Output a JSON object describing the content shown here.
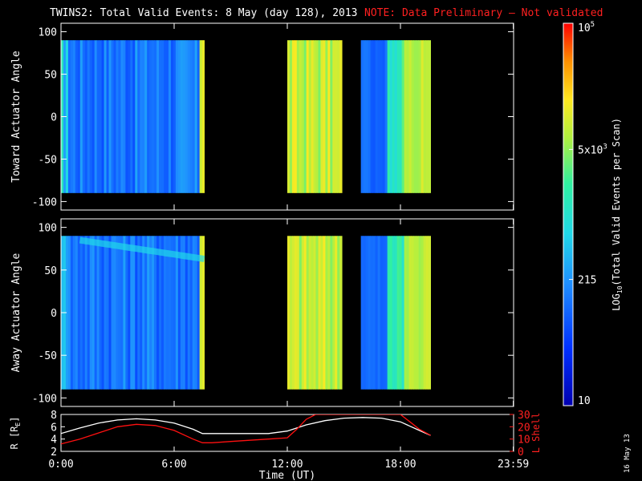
{
  "title": {
    "main": "TWINS2: Total Valid Events:  8 May (day 128), 2013",
    "note": "NOTE: Data Preliminary – Not validated",
    "note_color": "#ff2020"
  },
  "stamp": "16 May 13",
  "chart_data": [
    {
      "type": "heatmap",
      "panel": "toward",
      "ylabel": "Toward Actuator Angle",
      "ylim": [
        -110,
        110
      ],
      "yticks": [
        100,
        50,
        0,
        -50,
        -100
      ],
      "data_ylim": [
        -90,
        90
      ],
      "xlim_hours": [
        0,
        24
      ],
      "segments": [
        {
          "start_h": 0.0,
          "end_h": 7.6,
          "level": 0.28
        },
        {
          "start_h": 12.0,
          "end_h": 14.9,
          "level": 0.72
        },
        {
          "start_h": 15.9,
          "end_h": 19.6,
          "level": 0.55
        }
      ]
    },
    {
      "type": "heatmap",
      "panel": "away",
      "ylabel": "Away Actuator Angle",
      "ylim": [
        -110,
        110
      ],
      "yticks": [
        100,
        50,
        0,
        -50,
        -100
      ],
      "data_ylim": [
        -90,
        90
      ],
      "xlim_hours": [
        0,
        24
      ],
      "segments": [
        {
          "start_h": 0.0,
          "end_h": 7.6,
          "level": 0.28
        },
        {
          "start_h": 12.0,
          "end_h": 14.9,
          "level": 0.72
        },
        {
          "start_h": 15.9,
          "end_h": 19.6,
          "level": 0.55
        }
      ]
    },
    {
      "type": "line",
      "panel": "orbit",
      "xlabel": "Time (UT)",
      "xticks": [
        "0:00",
        "6:00",
        "12:00",
        "18:00",
        "23:59"
      ],
      "xtick_hours": [
        0,
        6,
        12,
        18,
        23.983
      ],
      "ylabel_left": "R [R",
      "ylabel_left_sub": "E",
      "ylabel_left_close": "]",
      "ylim_left": [
        2,
        8
      ],
      "yticks_left": [
        8,
        6,
        4,
        2
      ],
      "ylabel_right": "L Shell",
      "ylim_right": [
        0,
        30
      ],
      "yticks_right": [
        30,
        20,
        10,
        0
      ],
      "series": [
        {
          "color": "#ffffff",
          "axis": "left",
          "x": [
            0,
            1,
            2,
            3,
            4,
            5,
            6,
            7,
            7.5,
            8,
            9,
            10,
            11,
            12,
            13,
            14,
            15,
            16,
            17,
            18,
            19,
            19.6
          ],
          "y": [
            4.9,
            5.8,
            6.6,
            7.1,
            7.3,
            7.1,
            6.6,
            5.6,
            4.9,
            4.9,
            4.9,
            4.9,
            4.9,
            5.3,
            6.3,
            7.0,
            7.4,
            7.5,
            7.4,
            6.8,
            5.4,
            4.6
          ]
        },
        {
          "color": "#ff1010",
          "axis": "right",
          "x": [
            0,
            1,
            2,
            3,
            4,
            5,
            6,
            7,
            7.5,
            8,
            9,
            10,
            11,
            12,
            12.5,
            13,
            13.5,
            18,
            18.5,
            19,
            19.6
          ],
          "y": [
            6,
            10,
            15,
            20,
            22,
            21,
            17,
            10,
            7,
            7,
            8,
            9,
            10,
            11,
            18,
            26,
            30,
            30,
            24,
            18,
            13
          ]
        }
      ]
    },
    {
      "type": "colorbar",
      "label_main": "LOG",
      "label_sub": "10",
      "label_rest": "(Total Valid  Events per Scan)",
      "tick_labels": [
        "10",
        "215",
        "5x10",
        "10"
      ],
      "tick_sups": [
        "",
        "",
        "3",
        "5"
      ],
      "tick_fracs": [
        0.0,
        0.33,
        0.67,
        1.0
      ]
    }
  ]
}
